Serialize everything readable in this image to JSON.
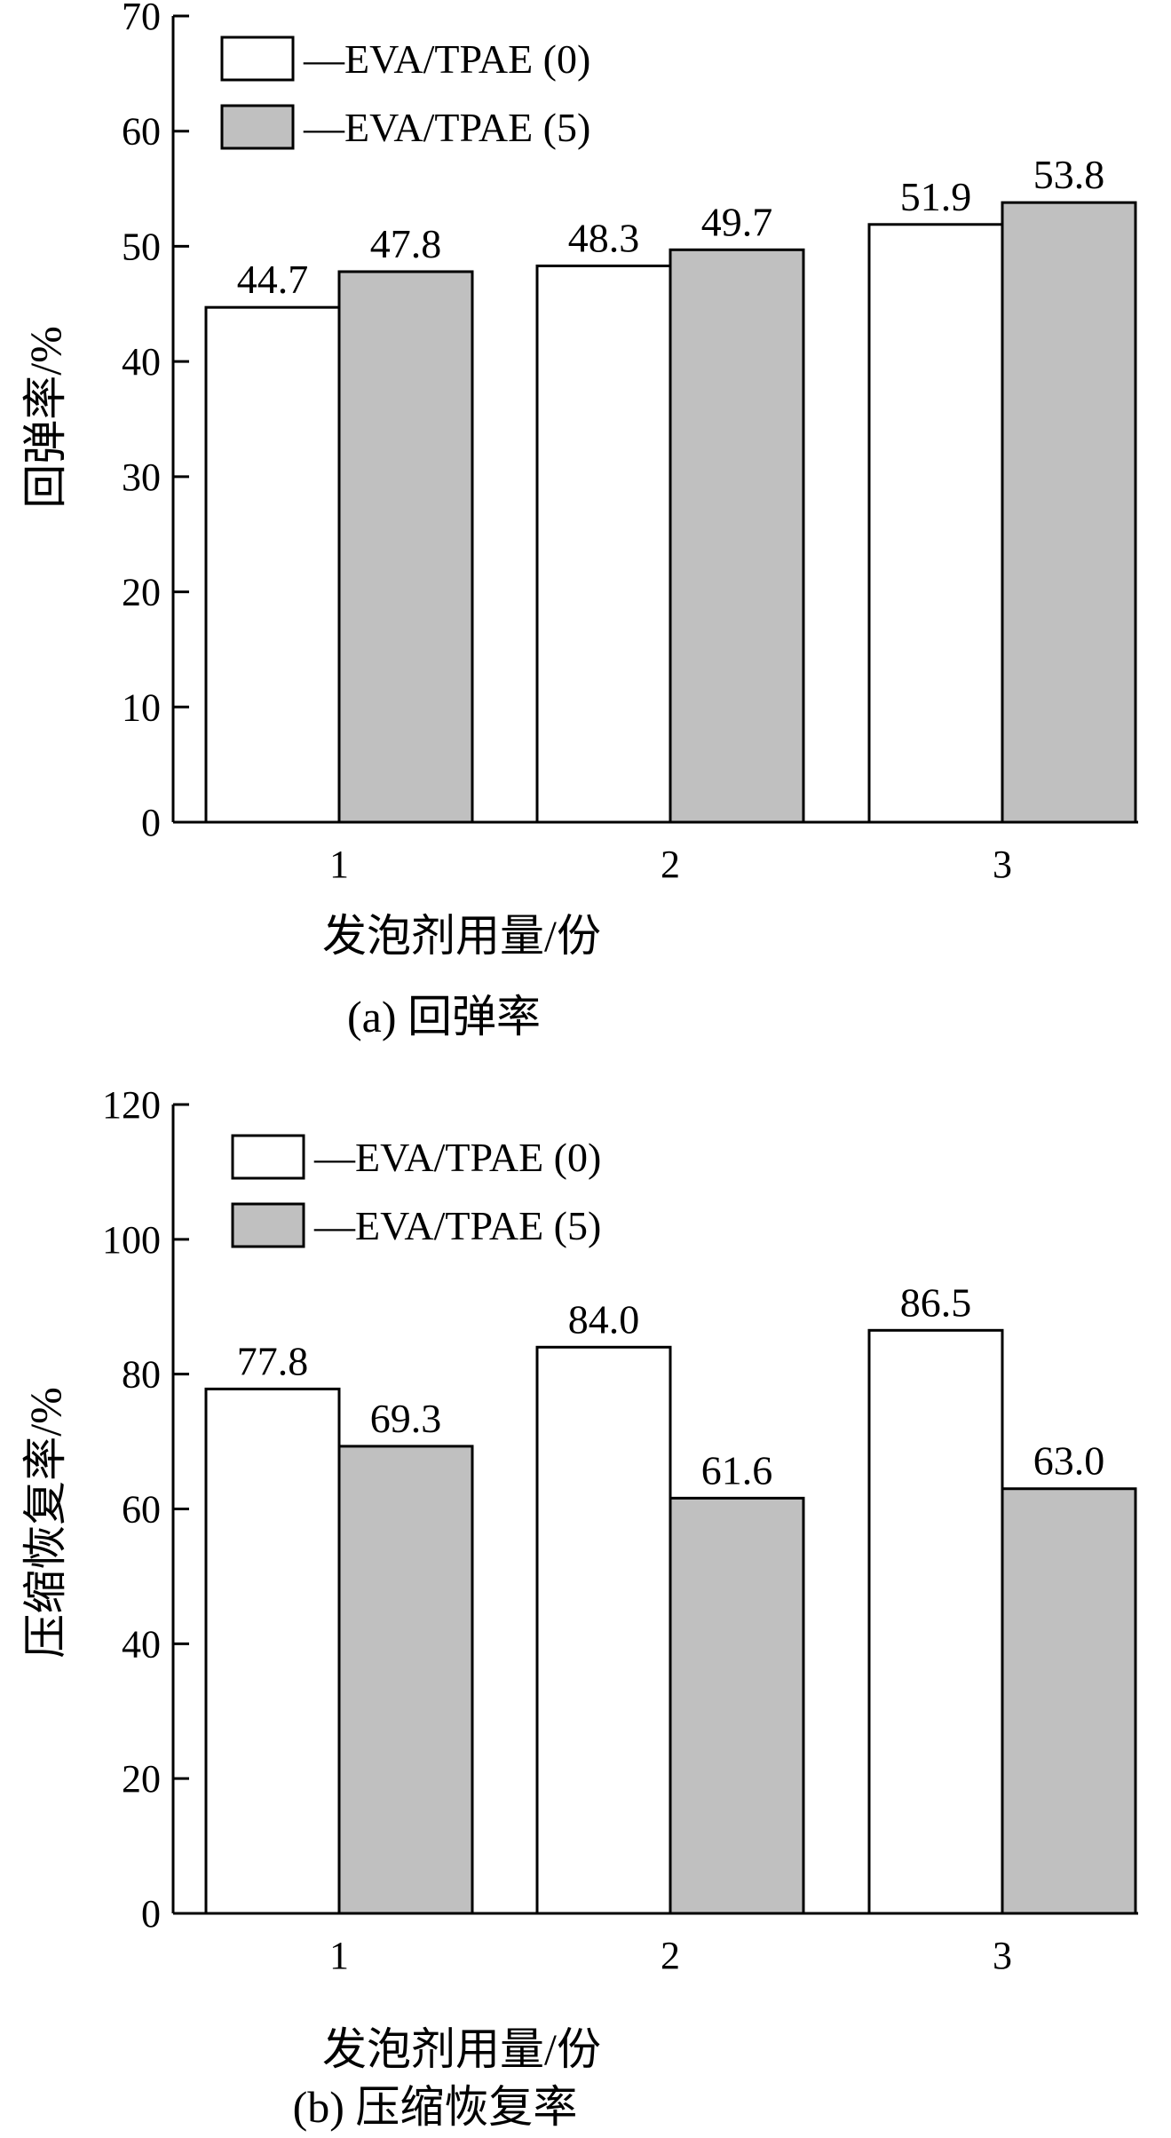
{
  "chart_data": [
    {
      "type": "bar",
      "categories": [
        "1",
        "2",
        "3"
      ],
      "series": [
        {
          "name": "—EVA/TPAE (0)",
          "values": [
            44.7,
            48.3,
            51.9
          ],
          "value_labels": [
            "44.7",
            "48.3",
            "51.9"
          ]
        },
        {
          "name": "—EVA/TPAE (5)",
          "values": [
            47.8,
            49.7,
            53.8
          ],
          "value_labels": [
            "47.8",
            "49.7",
            "53.8"
          ]
        }
      ],
      "colors": [
        "#ffffff",
        "#c0c0c0"
      ],
      "ylim": [
        0,
        70
      ],
      "yticks": [
        "0",
        "10",
        "20",
        "30",
        "40",
        "50",
        "60",
        "70"
      ],
      "xlabel": "发泡剂用量/份",
      "ylabel": "回弹率/%",
      "caption": "(a) 回弹率",
      "legend": "top-left",
      "grid": false
    },
    {
      "type": "bar",
      "categories": [
        "1",
        "2",
        "3"
      ],
      "series": [
        {
          "name": "—EVA/TPAE (0)",
          "values": [
            77.8,
            84.0,
            86.5
          ],
          "value_labels": [
            "77.8",
            "84.0",
            "86.5"
          ]
        },
        {
          "name": "—EVA/TPAE (5)",
          "values": [
            69.3,
            61.6,
            63.0
          ],
          "value_labels": [
            "69.3",
            "61.6",
            "63.0"
          ]
        }
      ],
      "colors": [
        "#ffffff",
        "#c0c0c0"
      ],
      "ylim": [
        0,
        120
      ],
      "yticks": [
        "0",
        "20",
        "40",
        "60",
        "80",
        "100",
        "120"
      ],
      "xlabel": "发泡剂用量/份",
      "ylabel": "压缩恢复率/%",
      "caption": "(b) 压缩恢复率",
      "legend": "top-left",
      "grid": false
    }
  ]
}
